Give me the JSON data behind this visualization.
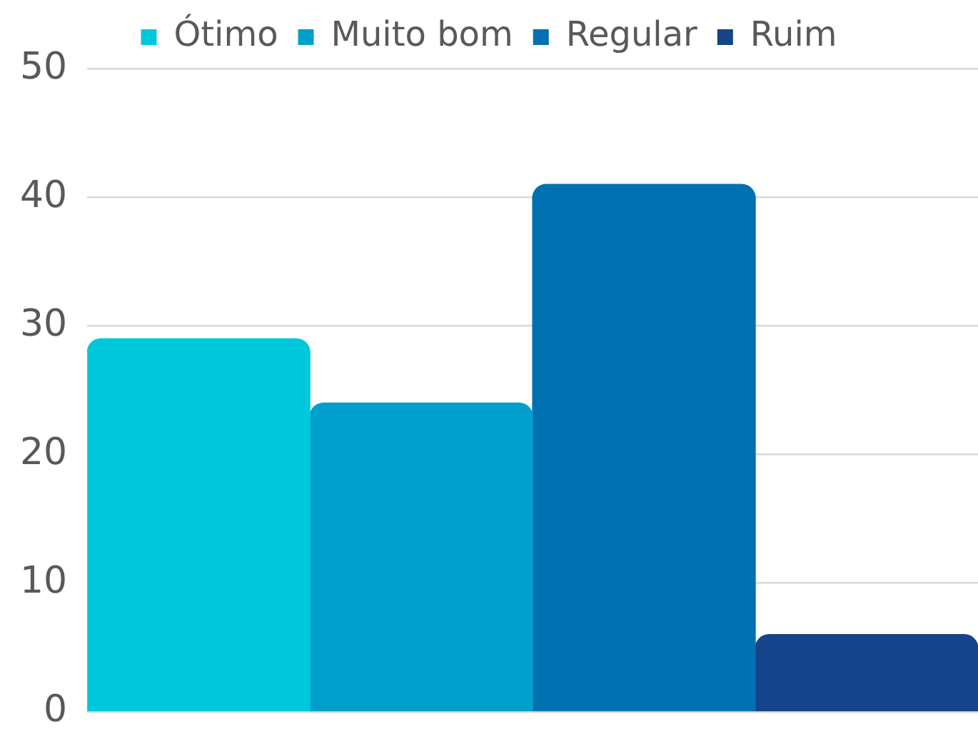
{
  "chart_data": {
    "type": "bar",
    "categories": [
      null
    ],
    "series": [
      {
        "name": "Ótimo",
        "color": "#00c8dc",
        "values": [
          29
        ]
      },
      {
        "name": "Muito bom",
        "color": "#009fcb",
        "values": [
          24
        ]
      },
      {
        "name": "Regular",
        "color": "#0071b0",
        "values": [
          41
        ]
      },
      {
        "name": "Ruim",
        "color": "#15448a",
        "values": [
          6
        ]
      }
    ],
    "ylim": [
      0,
      50
    ],
    "yticks": [
      0,
      10,
      20,
      30,
      40,
      50
    ],
    "grid": "y",
    "legend": "top"
  }
}
